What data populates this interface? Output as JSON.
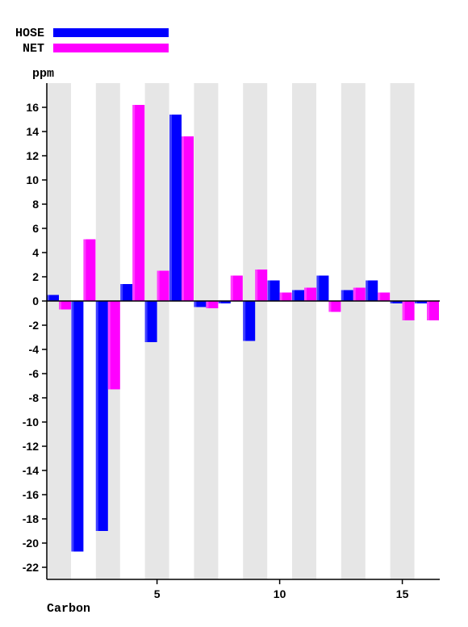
{
  "chart_data": {
    "type": "bar",
    "xlabel": "Carbon",
    "ylabel": "ppm",
    "ylim": [
      -22.5,
      17.5
    ],
    "yticks": [
      -22,
      -20,
      -18,
      -16,
      -14,
      -12,
      -10,
      -8,
      -6,
      -4,
      -2,
      0,
      2,
      4,
      6,
      8,
      10,
      12,
      14,
      16
    ],
    "xticks": [
      5,
      10,
      15
    ],
    "categories": [
      1,
      2,
      3,
      4,
      5,
      6,
      7,
      8,
      9,
      10,
      11,
      12,
      13,
      14,
      15,
      16
    ],
    "grid": "alternating vertical bands",
    "legend": "top-left",
    "band_color": "#e6e6e6",
    "series": [
      {
        "name": "HOSE",
        "color": "#0000ff",
        "values": [
          0.5,
          -20.7,
          -19.0,
          1.4,
          -3.4,
          15.4,
          -0.5,
          -0.2,
          -3.3,
          1.7,
          0.9,
          2.1,
          0.9,
          1.7,
          -0.2,
          -0.2
        ]
      },
      {
        "name": "NET",
        "color": "#ff00ff",
        "values": [
          -0.7,
          5.1,
          -7.3,
          16.2,
          2.5,
          13.6,
          -0.6,
          2.1,
          2.6,
          0.7,
          1.1,
          -0.9,
          1.1,
          0.7,
          -1.6,
          -1.6
        ]
      }
    ]
  }
}
